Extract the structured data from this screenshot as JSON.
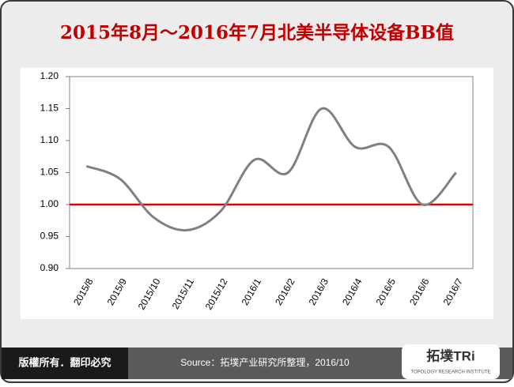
{
  "chart_data": {
    "type": "line",
    "title": "2015年8月～2016年7月北美半导体设备BB值",
    "categories": [
      "2015/8",
      "2015/9",
      "2015/10",
      "2015/11",
      "2015/12",
      "2016/1",
      "2016/2",
      "2016/3",
      "2016/4",
      "2016/5",
      "2016/6",
      "2016/7"
    ],
    "values": [
      1.06,
      1.04,
      0.98,
      0.96,
      0.99,
      1.07,
      1.05,
      1.15,
      1.09,
      1.09,
      1.0,
      1.05
    ],
    "color": "#808080",
    "reference_line": {
      "value": 1,
      "color": "#e00000"
    },
    "ylim": [
      0.9,
      1.2
    ],
    "yticks": [
      {
        "value": 0.9,
        "label": "0.90"
      },
      0.95,
      {
        "value": 1,
        "label": "1.00"
      },
      1.05,
      {
        "value": 1.1,
        "label": "1.10"
      },
      1.15,
      {
        "value": 1.2,
        "label": "1.20"
      }
    ],
    "grid": false
  },
  "footer": {
    "copyright": "版權所有．翻印必究",
    "source": "Source：拓墣产业研究所整理，2016/10",
    "logo": "拓墣TRi",
    "logo_subtitle": "TOPOLOGY RESEARCH INSTITUTE"
  }
}
